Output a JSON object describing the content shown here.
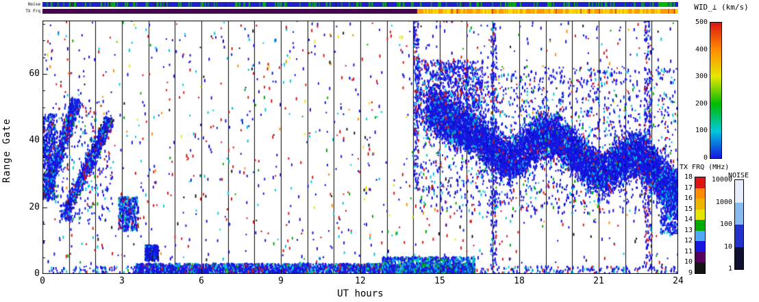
{
  "labels": {
    "noise_strip": "Noise",
    "txfrq_strip": "TX Frq",
    "wid_title": "WID_⊥ (km/s)",
    "txfrq_title": "TX FRQ (MHz)",
    "noise_title": "NOISE"
  },
  "chart_data": {
    "type": "heatmap",
    "title": "",
    "xlabel": "UT hours",
    "ylabel": "Range Gate",
    "xlim": [
      0,
      24
    ],
    "ylim": [
      0,
      76
    ],
    "xticks": [
      0,
      3,
      6,
      9,
      12,
      15,
      18,
      21,
      24
    ],
    "yticks": [
      0,
      20,
      40,
      60
    ],
    "grid": "vertical line at every hour",
    "legend_position": "right",
    "colorbars": [
      {
        "title": "WID_⊥ (km/s)",
        "style": "gradient",
        "ticks": [
          0,
          100,
          200,
          300,
          400,
          500
        ],
        "colors_low_to_high": [
          "#1616e0",
          "#00c8dc",
          "#00bb00",
          "#e6e600",
          "#ff8c00",
          "#dc1414"
        ]
      },
      {
        "title": "TX FRQ (MHz)",
        "style": "discrete",
        "ticks": [
          9,
          10,
          11,
          12,
          13,
          14,
          15,
          16,
          17,
          18
        ],
        "colors_low_to_high": [
          "#141414",
          "#55005f",
          "#1616e0",
          "#4fa8ff",
          "#00aa00",
          "#e6e600",
          "#f0b400",
          "#ff8c00",
          "#dc1414"
        ]
      },
      {
        "title": "NOISE",
        "style": "discrete_log",
        "ticks": [
          1,
          10,
          100,
          1000,
          10000
        ],
        "colors_low_to_high": [
          "#101030",
          "#2233cc",
          "#88bbee",
          "#e8eeff"
        ]
      }
    ],
    "strips": {
      "noise": {
        "base_color": "#2020cc",
        "fleck_color": "#00bb00",
        "fleck_count": 150,
        "dark_fleck_color": "#202020",
        "dark_fleck_count": 14,
        "green_segment_hours": [
          23.25,
          23.6
        ]
      },
      "txfrq": {
        "segments": [
          {
            "from": 0,
            "to": 14.15,
            "color": "#4a0050"
          },
          {
            "from": 14.15,
            "to": 24,
            "color": "#ff9a00"
          }
        ],
        "fleck_color": "#ffe000",
        "fleck_count": 110,
        "fleck_hours": [
          14.15,
          24
        ],
        "red_fleck_color": "#dd2200",
        "red_fleck_count": 10
      }
    },
    "regions": [
      {
        "name": "background-sparse-scatter",
        "x": [
          0,
          24
        ],
        "y": [
          0,
          76
        ],
        "count": 1300,
        "colors": [
          [
            "#1616e0",
            0.42
          ],
          [
            "#dc1414",
            0.25
          ],
          [
            "#00c8dc",
            0.12
          ],
          [
            "#00aa00",
            0.05
          ],
          [
            "#141414",
            0.05
          ],
          [
            "#ff8c00",
            0.05
          ],
          [
            "#e6e600",
            0.03
          ],
          [
            "#0000b8",
            0.03
          ]
        ]
      },
      {
        "name": "early-blob-0h",
        "x": [
          0,
          0.45
        ],
        "y": [
          22,
          48
        ],
        "count": 500,
        "colors": [
          [
            "#1616e0",
            0.8
          ],
          [
            "#00c8dc",
            0.12
          ],
          [
            "#dc1414",
            0.04
          ],
          [
            "#00aa00",
            0.04
          ]
        ]
      },
      {
        "name": "morning-diagonal-streak-1",
        "points": [
          [
            0.1,
            24
          ],
          [
            0.5,
            33
          ],
          [
            0.9,
            43
          ],
          [
            1.25,
            52
          ]
        ],
        "halfwidth": 2.5,
        "count": 700,
        "colors": [
          [
            "#1616e0",
            0.75
          ],
          [
            "#00c8dc",
            0.15
          ],
          [
            "#dc1414",
            0.05
          ],
          [
            "#141414",
            0.05
          ]
        ]
      },
      {
        "name": "morning-diagonal-streak-2",
        "points": [
          [
            0.8,
            17
          ],
          [
            1.3,
            26
          ],
          [
            1.8,
            34
          ],
          [
            2.2,
            41
          ],
          [
            2.5,
            46
          ]
        ],
        "halfwidth": 2.5,
        "count": 800,
        "colors": [
          [
            "#1616e0",
            0.75
          ],
          [
            "#00c8dc",
            0.15
          ],
          [
            "#dc1414",
            0.05
          ],
          [
            "#141414",
            0.05
          ]
        ]
      },
      {
        "name": "morning-halo",
        "x": [
          0.4,
          2.6
        ],
        "y": [
          15,
          52
        ],
        "count": 300,
        "colors": [
          [
            "#1616e0",
            0.7
          ],
          [
            "#00c8dc",
            0.15
          ],
          [
            "#dc1414",
            0.1
          ],
          [
            "#00aa00",
            0.05
          ]
        ]
      },
      {
        "name": "patch-3h-low-gates",
        "x": [
          2.85,
          3.6
        ],
        "y": [
          13,
          23
        ],
        "count": 380,
        "colors": [
          [
            "#1616e0",
            0.7
          ],
          [
            "#00c8dc",
            0.2
          ],
          [
            "#dc1414",
            0.05
          ],
          [
            "#00aa00",
            0.05
          ]
        ]
      },
      {
        "name": "blob-4h-near-ground",
        "x": [
          3.85,
          4.35
        ],
        "y": [
          4,
          8.5
        ],
        "count": 330,
        "colors": [
          [
            "#1616e0",
            0.85
          ],
          [
            "#00c8dc",
            0.1
          ],
          [
            "#141414",
            0.05
          ]
        ]
      },
      {
        "name": "ground-strip-main",
        "x": [
          3.5,
          16.3
        ],
        "y": [
          0,
          3
        ],
        "count": 2600,
        "colors": [
          [
            "#1616e0",
            0.72
          ],
          [
            "#00c8dc",
            0.18
          ],
          [
            "#00aa00",
            0.05
          ],
          [
            "#dc1414",
            0.05
          ]
        ]
      },
      {
        "name": "ground-strip-extension",
        "x": [
          0.2,
          24
        ],
        "y": [
          0,
          2.2
        ],
        "count": 500,
        "colors": [
          [
            "#1616e0",
            0.7
          ],
          [
            "#00c8dc",
            0.2
          ],
          [
            "#dc1414",
            0.1
          ]
        ]
      },
      {
        "name": "ground-strip-thick-13-16h",
        "x": [
          12.8,
          16.3
        ],
        "y": [
          0,
          5
        ],
        "count": 900,
        "colors": [
          [
            "#1616e0",
            0.6
          ],
          [
            "#00c8dc",
            0.3
          ],
          [
            "#00aa00",
            0.1
          ]
        ]
      },
      {
        "name": "evening-dense-band",
        "points": [
          [
            14.6,
            49
          ],
          [
            15.2,
            46
          ],
          [
            15.8,
            44
          ],
          [
            16.4,
            41
          ],
          [
            17.0,
            37
          ],
          [
            17.6,
            34
          ],
          [
            18.2,
            37
          ],
          [
            18.8,
            41
          ],
          [
            19.4,
            41
          ],
          [
            20.0,
            37
          ],
          [
            20.6,
            32
          ],
          [
            21.2,
            30
          ],
          [
            21.8,
            34
          ],
          [
            22.4,
            36
          ],
          [
            22.9,
            33
          ],
          [
            23.4,
            28
          ],
          [
            24,
            24
          ]
        ],
        "halfwidth": 8,
        "count": 9500,
        "colors": [
          [
            "#1616e0",
            0.82
          ],
          [
            "#0000b8",
            0.08
          ],
          [
            "#00c8dc",
            0.08
          ],
          [
            "#dc1414",
            0.02
          ]
        ]
      },
      {
        "name": "evening-halo",
        "x": [
          14.2,
          24
        ],
        "y": [
          18,
          62
        ],
        "count": 1800,
        "colors": [
          [
            "#1616e0",
            0.7
          ],
          [
            "#00c8dc",
            0.15
          ],
          [
            "#dc1414",
            0.1
          ],
          [
            "#00aa00",
            0.05
          ]
        ]
      },
      {
        "name": "evening-upper-cloud-14-16h",
        "x": [
          14.1,
          16.6
        ],
        "y": [
          44,
          64
        ],
        "count": 900,
        "colors": [
          [
            "#1616e0",
            0.8
          ],
          [
            "#00c8dc",
            0.1
          ],
          [
            "#dc1414",
            0.1
          ]
        ]
      },
      {
        "name": "dense-column-17h",
        "x": [
          16.9,
          17.12
        ],
        "y": [
          2,
          76
        ],
        "count": 260,
        "colors": [
          [
            "#1616e0",
            0.8
          ],
          [
            "#dc1414",
            0.1
          ],
          [
            "#00c8dc",
            0.1
          ]
        ]
      },
      {
        "name": "dense-column-22.8h",
        "x": [
          22.7,
          22.95
        ],
        "y": [
          2,
          76
        ],
        "count": 240,
        "colors": [
          [
            "#1616e0",
            0.75
          ],
          [
            "#dc1414",
            0.15
          ],
          [
            "#00c8dc",
            0.1
          ]
        ]
      },
      {
        "name": "dense-column-14h",
        "x": [
          14.0,
          14.18
        ],
        "y": [
          25,
          76
        ],
        "count": 200,
        "colors": [
          [
            "#1616e0",
            0.8
          ],
          [
            "#00c8dc",
            0.1
          ],
          [
            "#dc1414",
            0.1
          ]
        ]
      },
      {
        "name": "right-edge-low-patch",
        "x": [
          23.3,
          24
        ],
        "y": [
          12,
          30
        ],
        "count": 400,
        "colors": [
          [
            "#1616e0",
            0.8
          ],
          [
            "#00c8dc",
            0.2
          ]
        ]
      }
    ]
  }
}
